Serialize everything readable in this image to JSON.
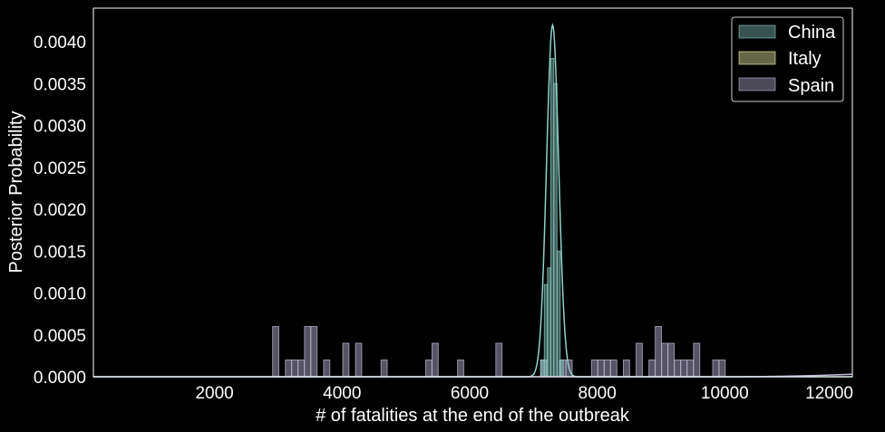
{
  "chart_data": {
    "type": "histogram",
    "title": "",
    "xlabel": "# of fatalities at the end of the outbreak",
    "ylabel": "Posterior Probability",
    "xlim": [
      100,
      12000
    ],
    "ylim": [
      0,
      0.0044
    ],
    "xticks": [
      2000,
      4000,
      6000,
      8000,
      10000,
      12000
    ],
    "yticks": [
      "0.0000",
      "0.0005",
      "0.0010",
      "0.0015",
      "0.0020",
      "0.0025",
      "0.0030",
      "0.0035",
      "0.0040"
    ],
    "grid": false,
    "legend_position": "top-right",
    "colors": {
      "China": "#8dd3c7",
      "Italy": "#ffffb3",
      "Spain": "#bebada",
      "background": "#000000",
      "text": "#ffffff"
    },
    "series": [
      {
        "name": "China",
        "bin_width": 49,
        "bins": [
          {
            "x": 7120,
            "y": 0.0002
          },
          {
            "x": 7170,
            "y": 0.0011
          },
          {
            "x": 7220,
            "y": 0.0013
          },
          {
            "x": 7270,
            "y": 0.0038
          },
          {
            "x": 7320,
            "y": 0.0035
          },
          {
            "x": 7370,
            "y": 0.0015
          },
          {
            "x": 7420,
            "y": 0.0002
          }
        ],
        "kde_mean": 7300,
        "kde_sd": 95,
        "kde_peak": 0.0042
      },
      {
        "name": "Italy",
        "bins": []
      },
      {
        "name": "Spain",
        "bin_width": 97,
        "bins": [
          {
            "x": 2910,
            "y": 0.0006
          },
          {
            "x": 3110,
            "y": 0.0002
          },
          {
            "x": 3210,
            "y": 0.0002
          },
          {
            "x": 3310,
            "y": 0.0002
          },
          {
            "x": 3410,
            "y": 0.0006
          },
          {
            "x": 3510,
            "y": 0.0006
          },
          {
            "x": 3710,
            "y": 0.0002
          },
          {
            "x": 4010,
            "y": 0.0004
          },
          {
            "x": 4210,
            "y": 0.0004
          },
          {
            "x": 4610,
            "y": 0.0002
          },
          {
            "x": 5310,
            "y": 0.0002
          },
          {
            "x": 5410,
            "y": 0.0004
          },
          {
            "x": 5810,
            "y": 0.0002
          },
          {
            "x": 6410,
            "y": 0.0004
          },
          {
            "x": 7110,
            "y": 0.0002
          },
          {
            "x": 7410,
            "y": 0.0002
          },
          {
            "x": 7510,
            "y": 0.0002
          },
          {
            "x": 7910,
            "y": 0.0002
          },
          {
            "x": 8010,
            "y": 0.0002
          },
          {
            "x": 8110,
            "y": 0.0002
          },
          {
            "x": 8210,
            "y": 0.0002
          },
          {
            "x": 8410,
            "y": 0.0002
          },
          {
            "x": 8610,
            "y": 0.0004
          },
          {
            "x": 8810,
            "y": 0.0002
          },
          {
            "x": 8910,
            "y": 0.0006
          },
          {
            "x": 9010,
            "y": 0.0004
          },
          {
            "x": 9110,
            "y": 0.0004
          },
          {
            "x": 9210,
            "y": 0.0002
          },
          {
            "x": 9310,
            "y": 0.0002
          },
          {
            "x": 9410,
            "y": 0.0002
          },
          {
            "x": 9510,
            "y": 0.0004
          },
          {
            "x": 9810,
            "y": 0.0002
          },
          {
            "x": 9910,
            "y": 0.0002
          }
        ],
        "kde_tail_start": 10000,
        "kde_tail_end_value": 3e-05
      }
    ]
  }
}
